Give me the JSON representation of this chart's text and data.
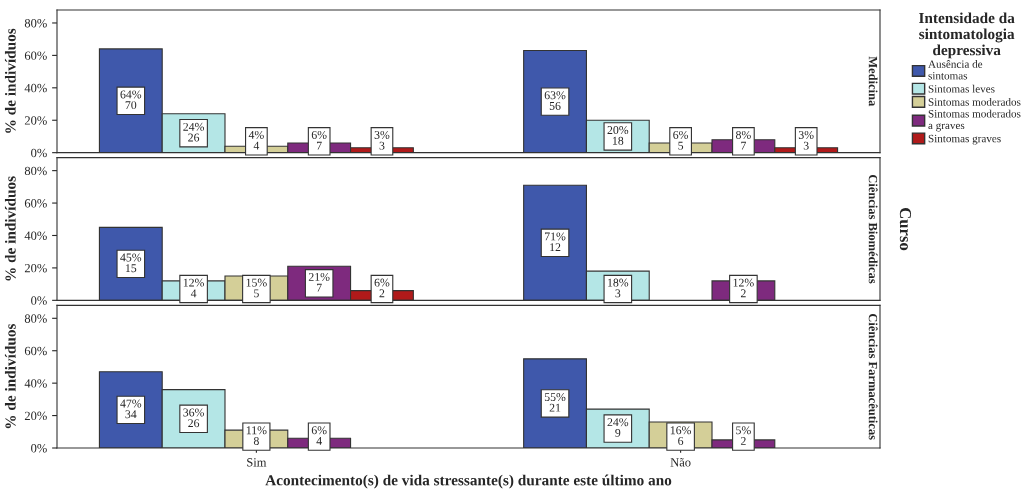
{
  "chart_data": [
    {
      "type": "bar",
      "title": "Medicina",
      "ylabel": "% de indivíduos",
      "ylim": [
        0,
        88
      ],
      "yticks": [
        {
          "value": 0,
          "label": "0%"
        },
        {
          "value": 20,
          "label": "20%"
        },
        {
          "value": 40,
          "label": "40%"
        },
        {
          "value": 60,
          "label": "60%"
        },
        {
          "value": 80,
          "label": "80%"
        }
      ],
      "tick_labels": "y",
      "legend": "right",
      "legend_title": "Intensidade da\nsintomatologia\ndepressiva",
      "series": [
        {
          "name": "Ausência de\nsintomas",
          "color": "#3f58ab",
          "values": [
            64,
            63
          ],
          "value_labels": [
            "64%\n70",
            "63%\n56"
          ]
        },
        {
          "name": "Sintomas leves",
          "color": "#b4e6e6",
          "values": [
            24,
            20
          ],
          "value_labels": [
            "24%\n26",
            "20%\n18"
          ]
        },
        {
          "name": "Sintomas moderados",
          "color": "#d4cf98",
          "values": [
            4,
            6
          ],
          "value_labels": [
            "4%\n4",
            "6%\n5"
          ]
        },
        {
          "name": "Sintomas moderados\na graves",
          "color": "#7e2a7e",
          "values": [
            6,
            8
          ],
          "value_labels": [
            "6%\n7",
            "8%\n7"
          ]
        },
        {
          "name": "Sintomas graves",
          "color": "#b01a1a",
          "values": [
            3,
            3
          ],
          "value_labels": [
            "3%\n3",
            "3%\n3"
          ]
        }
      ]
    },
    {
      "type": "bar",
      "title": "Ciências Biomédicas",
      "ylabel": "% de indivíduos",
      "annotations": [
        "Curso"
      ],
      "ylim": [
        0,
        88
      ],
      "yticks": [
        {
          "value": 0,
          "label": "0%"
        },
        {
          "value": 20,
          "label": "20%"
        },
        {
          "value": 40,
          "label": "40%"
        },
        {
          "value": 60,
          "label": "60%"
        },
        {
          "value": 80,
          "label": "80%"
        }
      ],
      "tick_labels": "y",
      "series": [
        {
          "color": "#3f58ab",
          "values": [
            45,
            71
          ],
          "value_labels": [
            "45%\n15",
            "71%\n12"
          ]
        },
        {
          "color": "#b4e6e6",
          "values": [
            12,
            18
          ],
          "value_labels": [
            "12%\n4",
            "18%\n3"
          ]
        },
        {
          "color": "#d4cf98",
          "values": [
            15,
            null
          ],
          "value_labels": [
            "15%\n5",
            null
          ]
        },
        {
          "color": "#7e2a7e",
          "values": [
            21,
            12
          ],
          "value_labels": [
            "21%\n7",
            "12%\n2"
          ]
        },
        {
          "color": "#b01a1a",
          "values": [
            6,
            null
          ],
          "value_labels": [
            "6%\n2",
            null
          ]
        }
      ]
    },
    {
      "type": "bar",
      "title": "Ciências Farmacêuticas",
      "ylabel": "% de indivíduos",
      "xlabel": "Acontecimento(s) de vida stressante(s) durante este último ano",
      "categories": [
        "Sim",
        "Não"
      ],
      "ylim": [
        0,
        88
      ],
      "yticks": [
        {
          "value": 0,
          "label": "0%"
        },
        {
          "value": 20,
          "label": "20%"
        },
        {
          "value": 40,
          "label": "40%"
        },
        {
          "value": 60,
          "label": "60%"
        },
        {
          "value": 80,
          "label": "80%"
        }
      ],
      "series": [
        {
          "color": "#3f58ab",
          "values": [
            47,
            55
          ],
          "value_labels": [
            "47%\n34",
            "55%\n21"
          ]
        },
        {
          "color": "#b4e6e6",
          "values": [
            36,
            24
          ],
          "value_labels": [
            "36%\n26",
            "24%\n9"
          ]
        },
        {
          "color": "#d4cf98",
          "values": [
            11,
            16
          ],
          "value_labels": [
            "11%\n8",
            "16%\n6"
          ]
        },
        {
          "color": "#7e2a7e",
          "values": [
            6,
            5
          ],
          "value_labels": [
            "6%\n4",
            "5%\n2"
          ]
        }
      ]
    }
  ]
}
